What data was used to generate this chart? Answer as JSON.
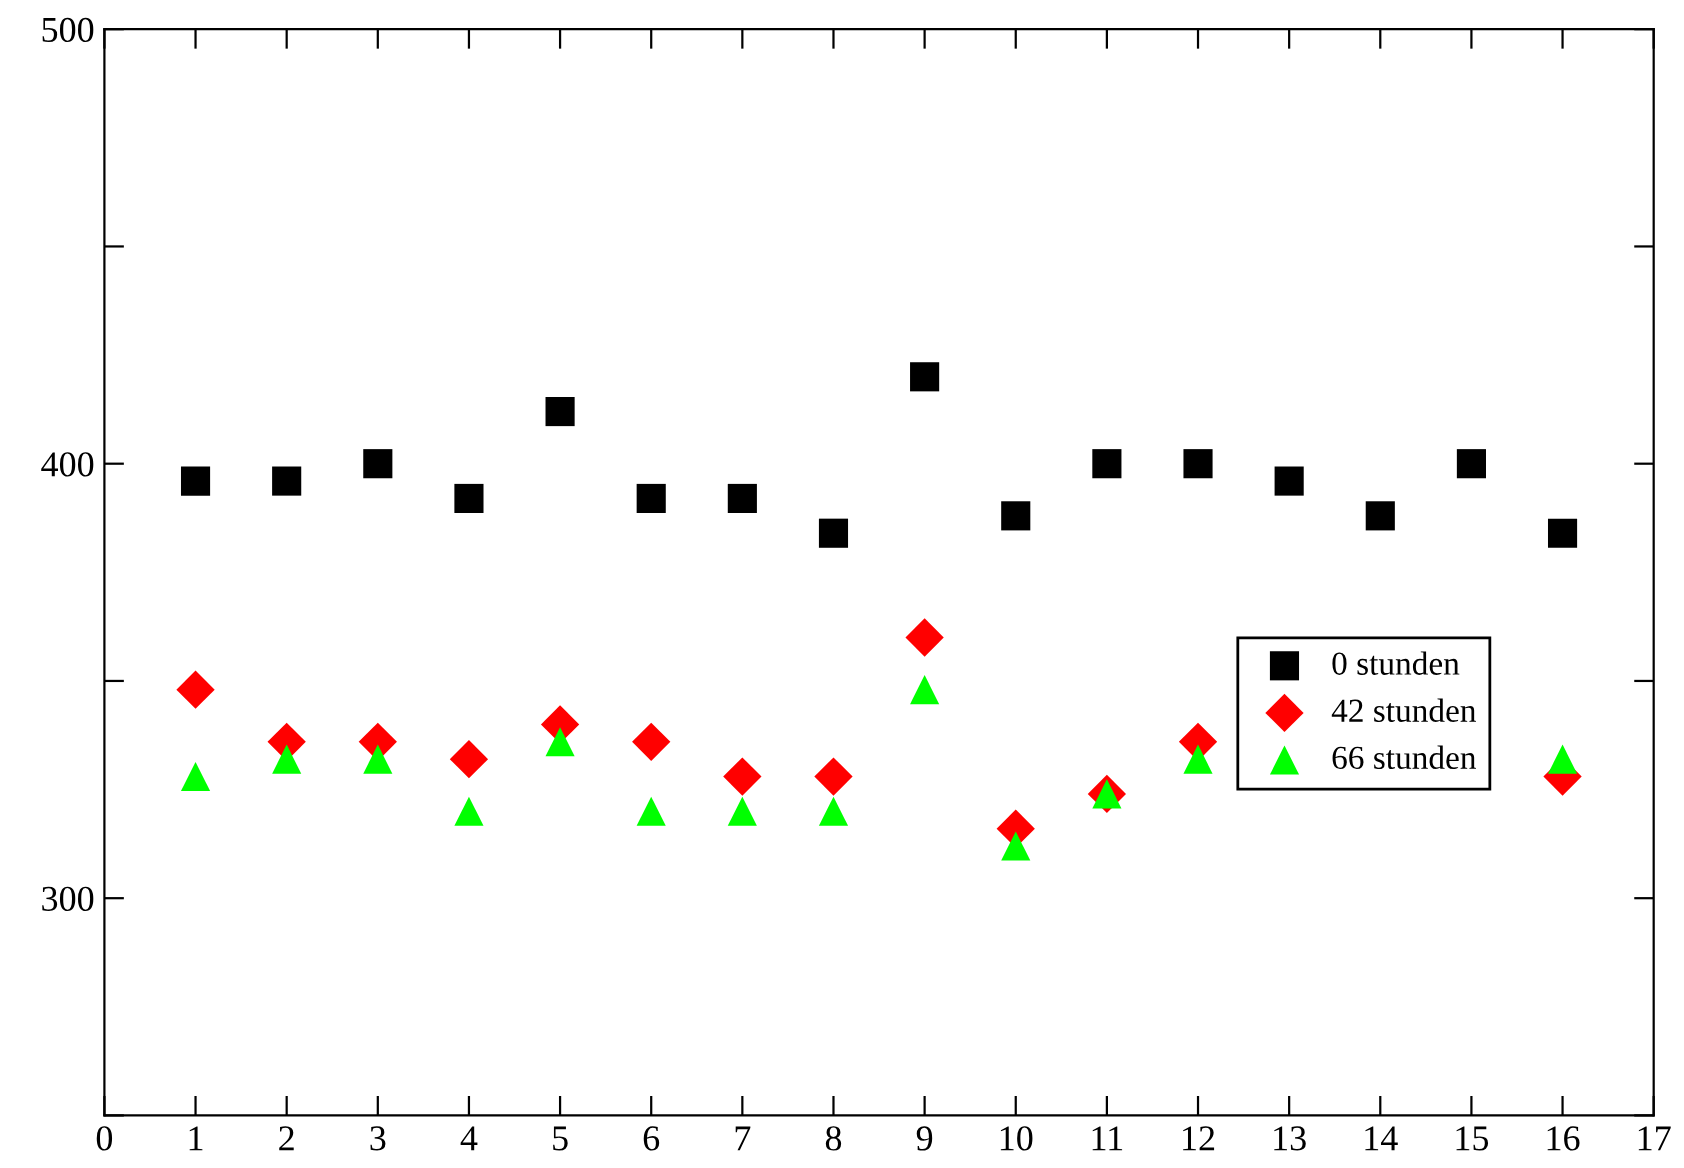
{
  "chart_data": {
    "type": "scatter",
    "x": [
      1,
      2,
      3,
      4,
      5,
      6,
      7,
      8,
      9,
      10,
      11,
      12,
      13,
      14,
      15,
      16
    ],
    "series": [
      {
        "name": "0 stunden",
        "color": "#000000",
        "marker": "square",
        "values": [
          396,
          396,
          400,
          392,
          412,
          392,
          392,
          384,
          420,
          388,
          400,
          400,
          396,
          388,
          400,
          384
        ]
      },
      {
        "name": "42 stunden",
        "color": "#ff0000",
        "marker": "diamond",
        "values": [
          348,
          336,
          336,
          332,
          340,
          336,
          328,
          328,
          360,
          316,
          324,
          336,
          null,
          null,
          null,
          328
        ]
      },
      {
        "name": "66 stunden",
        "color": "#00ff00",
        "marker": "triangle",
        "values": [
          328,
          332,
          332,
          320,
          336,
          320,
          320,
          320,
          348,
          312,
          324,
          332,
          null,
          null,
          null,
          332
        ]
      }
    ],
    "xlim": [
      0,
      17
    ],
    "xticks": [
      0,
      1,
      2,
      3,
      4,
      5,
      6,
      7,
      8,
      9,
      10,
      11,
      12,
      13,
      14,
      15,
      16,
      17
    ],
    "ylim": [
      250,
      500
    ],
    "yticks": [
      {
        "value": 250,
        "label": null
      },
      300,
      {
        "value": 350,
        "label": null
      },
      400,
      {
        "value": 450,
        "label": null
      },
      500
    ],
    "grid": false,
    "legend": "right"
  }
}
